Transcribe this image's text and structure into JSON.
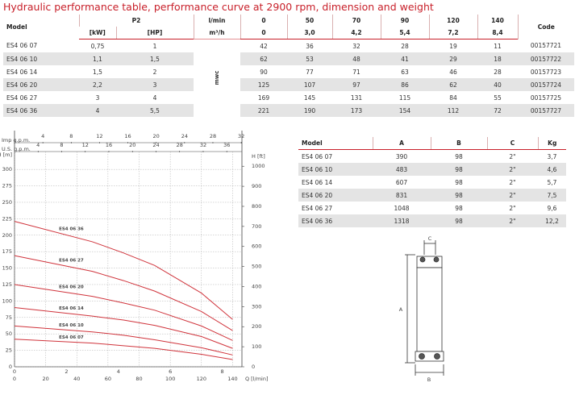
{
  "title": "Hydraulic performance table, performance curve at 2900 rpm, dimension and weight",
  "performance_table": {
    "header": {
      "model": "Model",
      "p2": "P2",
      "kw": "[kW]",
      "hp": "[HP]",
      "lmin": "l/min",
      "m3h": "m³/h",
      "code": "Code",
      "unit": "mwc"
    },
    "flow_lmin": [
      "0",
      "50",
      "70",
      "90",
      "120",
      "140"
    ],
    "flow_m3h": [
      "0",
      "3,0",
      "4,2",
      "5,4",
      "7,2",
      "8,4"
    ],
    "rows": [
      [
        "ES4 06 07",
        "0,75",
        "1",
        "42",
        "36",
        "32",
        "28",
        "19",
        "11",
        "00157721"
      ],
      [
        "ES4 06 10",
        "1,1",
        "1,5",
        "62",
        "53",
        "48",
        "41",
        "29",
        "18",
        "00157722"
      ],
      [
        "ES4 06 14",
        "1,5",
        "2",
        "90",
        "77",
        "71",
        "63",
        "46",
        "28",
        "00157723"
      ],
      [
        "ES4 06 20",
        "2,2",
        "3",
        "125",
        "107",
        "97",
        "86",
        "62",
        "40",
        "00157724"
      ],
      [
        "ES4 06 27",
        "3",
        "4",
        "169",
        "145",
        "131",
        "115",
        "84",
        "55",
        "00157725"
      ],
      [
        "ES4 06 36",
        "4",
        "5,5",
        "221",
        "190",
        "173",
        "154",
        "112",
        "72",
        "00157727"
      ]
    ]
  },
  "chart_data": {
    "type": "line",
    "x": [
      0,
      50,
      70,
      90,
      120,
      140
    ],
    "xlim": [
      0,
      146
    ],
    "xticks": [
      0,
      20,
      40,
      60,
      80,
      100,
      120,
      140
    ],
    "x_label": "Q [l/min]",
    "ylim": [
      0,
      310
    ],
    "yticks": [
      0,
      25,
      50,
      75,
      100,
      125,
      150,
      175,
      200,
      225,
      250,
      275,
      300
    ],
    "y_label": "H [m]",
    "y2lim": [
      0,
      1017
    ],
    "y2ticks": [
      0,
      100,
      200,
      300,
      400,
      500,
      600,
      700,
      800,
      900,
      1000
    ],
    "y2_label": "H [ft]",
    "secondary_x_axes": [
      {
        "lim": [
          0,
          8.76
        ],
        "ticks": [
          0,
          2,
          4,
          6,
          8
        ]
      },
      {
        "label": "Imp g.p.m.",
        "lim": [
          0,
          32.1
        ],
        "ticks": [
          4,
          8,
          12,
          16,
          20,
          24,
          28,
          32
        ]
      },
      {
        "label": "U.S. g.p.m.",
        "lim": [
          0,
          38.57
        ],
        "ticks": [
          4,
          8,
          12,
          16,
          20,
          24,
          28,
          32,
          36
        ]
      }
    ],
    "grid": true,
    "series": [
      {
        "name": "ES4 06 07",
        "color": "#d0343c",
        "values": [
          42,
          36,
          32,
          28,
          19,
          11
        ]
      },
      {
        "name": "ES4 06 10",
        "color": "#d0343c",
        "values": [
          62,
          53,
          48,
          41,
          29,
          18
        ]
      },
      {
        "name": "ES4 06 14",
        "color": "#d0343c",
        "values": [
          90,
          77,
          71,
          63,
          46,
          28
        ]
      },
      {
        "name": "ES4 06 20",
        "color": "#d0343c",
        "values": [
          125,
          107,
          97,
          86,
          62,
          40
        ]
      },
      {
        "name": "ES4 06 27",
        "color": "#d0343c",
        "values": [
          169,
          145,
          131,
          115,
          84,
          55
        ]
      },
      {
        "name": "ES4 06 36",
        "color": "#d0343c",
        "values": [
          221,
          190,
          173,
          154,
          112,
          72
        ]
      }
    ]
  },
  "dimension_table": {
    "header": [
      "Model",
      "A",
      "B",
      "C",
      "Kg"
    ],
    "rows": [
      [
        "ES4 06 07",
        "390",
        "98",
        "2\"",
        "3,7"
      ],
      [
        "ES4 06 10",
        "483",
        "98",
        "2\"",
        "4,6"
      ],
      [
        "ES4 06 14",
        "607",
        "98",
        "2\"",
        "5,7"
      ],
      [
        "ES4 06 20",
        "831",
        "98",
        "2\"",
        "7,5"
      ],
      [
        "ES4 06 27",
        "1048",
        "98",
        "2\"",
        "9,6"
      ],
      [
        "ES4 06 36",
        "1318",
        "98",
        "2\"",
        "12,2"
      ]
    ]
  },
  "drawing": {
    "labels": {
      "a": "A",
      "b": "B",
      "c": "C"
    }
  }
}
